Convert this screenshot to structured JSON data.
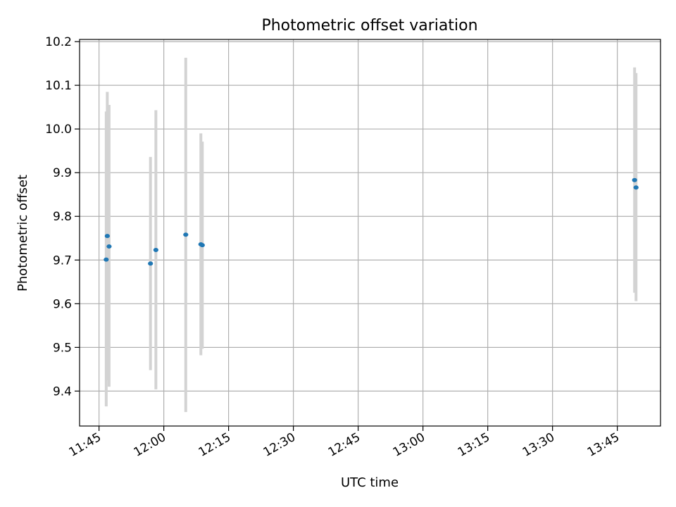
{
  "chart_data": {
    "type": "scatter",
    "title": "Photometric offset variation",
    "xlabel": "UTC time",
    "ylabel": "Photometric offset",
    "x_axis_type": "time",
    "xlim": [
      "11:40:30",
      "13:55:00"
    ],
    "ylim": [
      9.32,
      10.205
    ],
    "grid": true,
    "x_ticks": [
      "11:45",
      "12:00",
      "12:15",
      "12:30",
      "12:45",
      "13:00",
      "13:15",
      "13:30",
      "13:45"
    ],
    "y_ticks": [
      9.4,
      9.5,
      9.6,
      9.7,
      9.8,
      9.9,
      10.0,
      10.1,
      10.2
    ],
    "marker_color": "#1f77b4",
    "errorbar_color": "#d3d3d3",
    "points": [
      {
        "x": "11:46:40",
        "y": 9.701,
        "yerr_low": 9.365,
        "yerr_high": 10.04
      },
      {
        "x": "11:46:55",
        "y": 9.755,
        "yerr_low": 9.425,
        "yerr_high": 10.085
      },
      {
        "x": "11:47:20",
        "y": 9.731,
        "yerr_low": 9.41,
        "yerr_high": 10.055
      },
      {
        "x": "11:56:55",
        "y": 9.692,
        "yerr_low": 9.448,
        "yerr_high": 9.936
      },
      {
        "x": "11:58:10",
        "y": 9.723,
        "yerr_low": 9.404,
        "yerr_high": 10.043
      },
      {
        "x": "12:05:05",
        "y": 9.758,
        "yerr_low": 9.352,
        "yerr_high": 10.163
      },
      {
        "x": "12:08:35",
        "y": 9.736,
        "yerr_low": 9.482,
        "yerr_high": 9.99
      },
      {
        "x": "12:08:55",
        "y": 9.734,
        "yerr_low": 9.497,
        "yerr_high": 9.971
      },
      {
        "x": "13:49:00",
        "y": 9.883,
        "yerr_low": 9.625,
        "yerr_high": 10.141
      },
      {
        "x": "13:49:20",
        "y": 9.866,
        "yerr_low": 9.606,
        "yerr_high": 10.128
      }
    ]
  }
}
